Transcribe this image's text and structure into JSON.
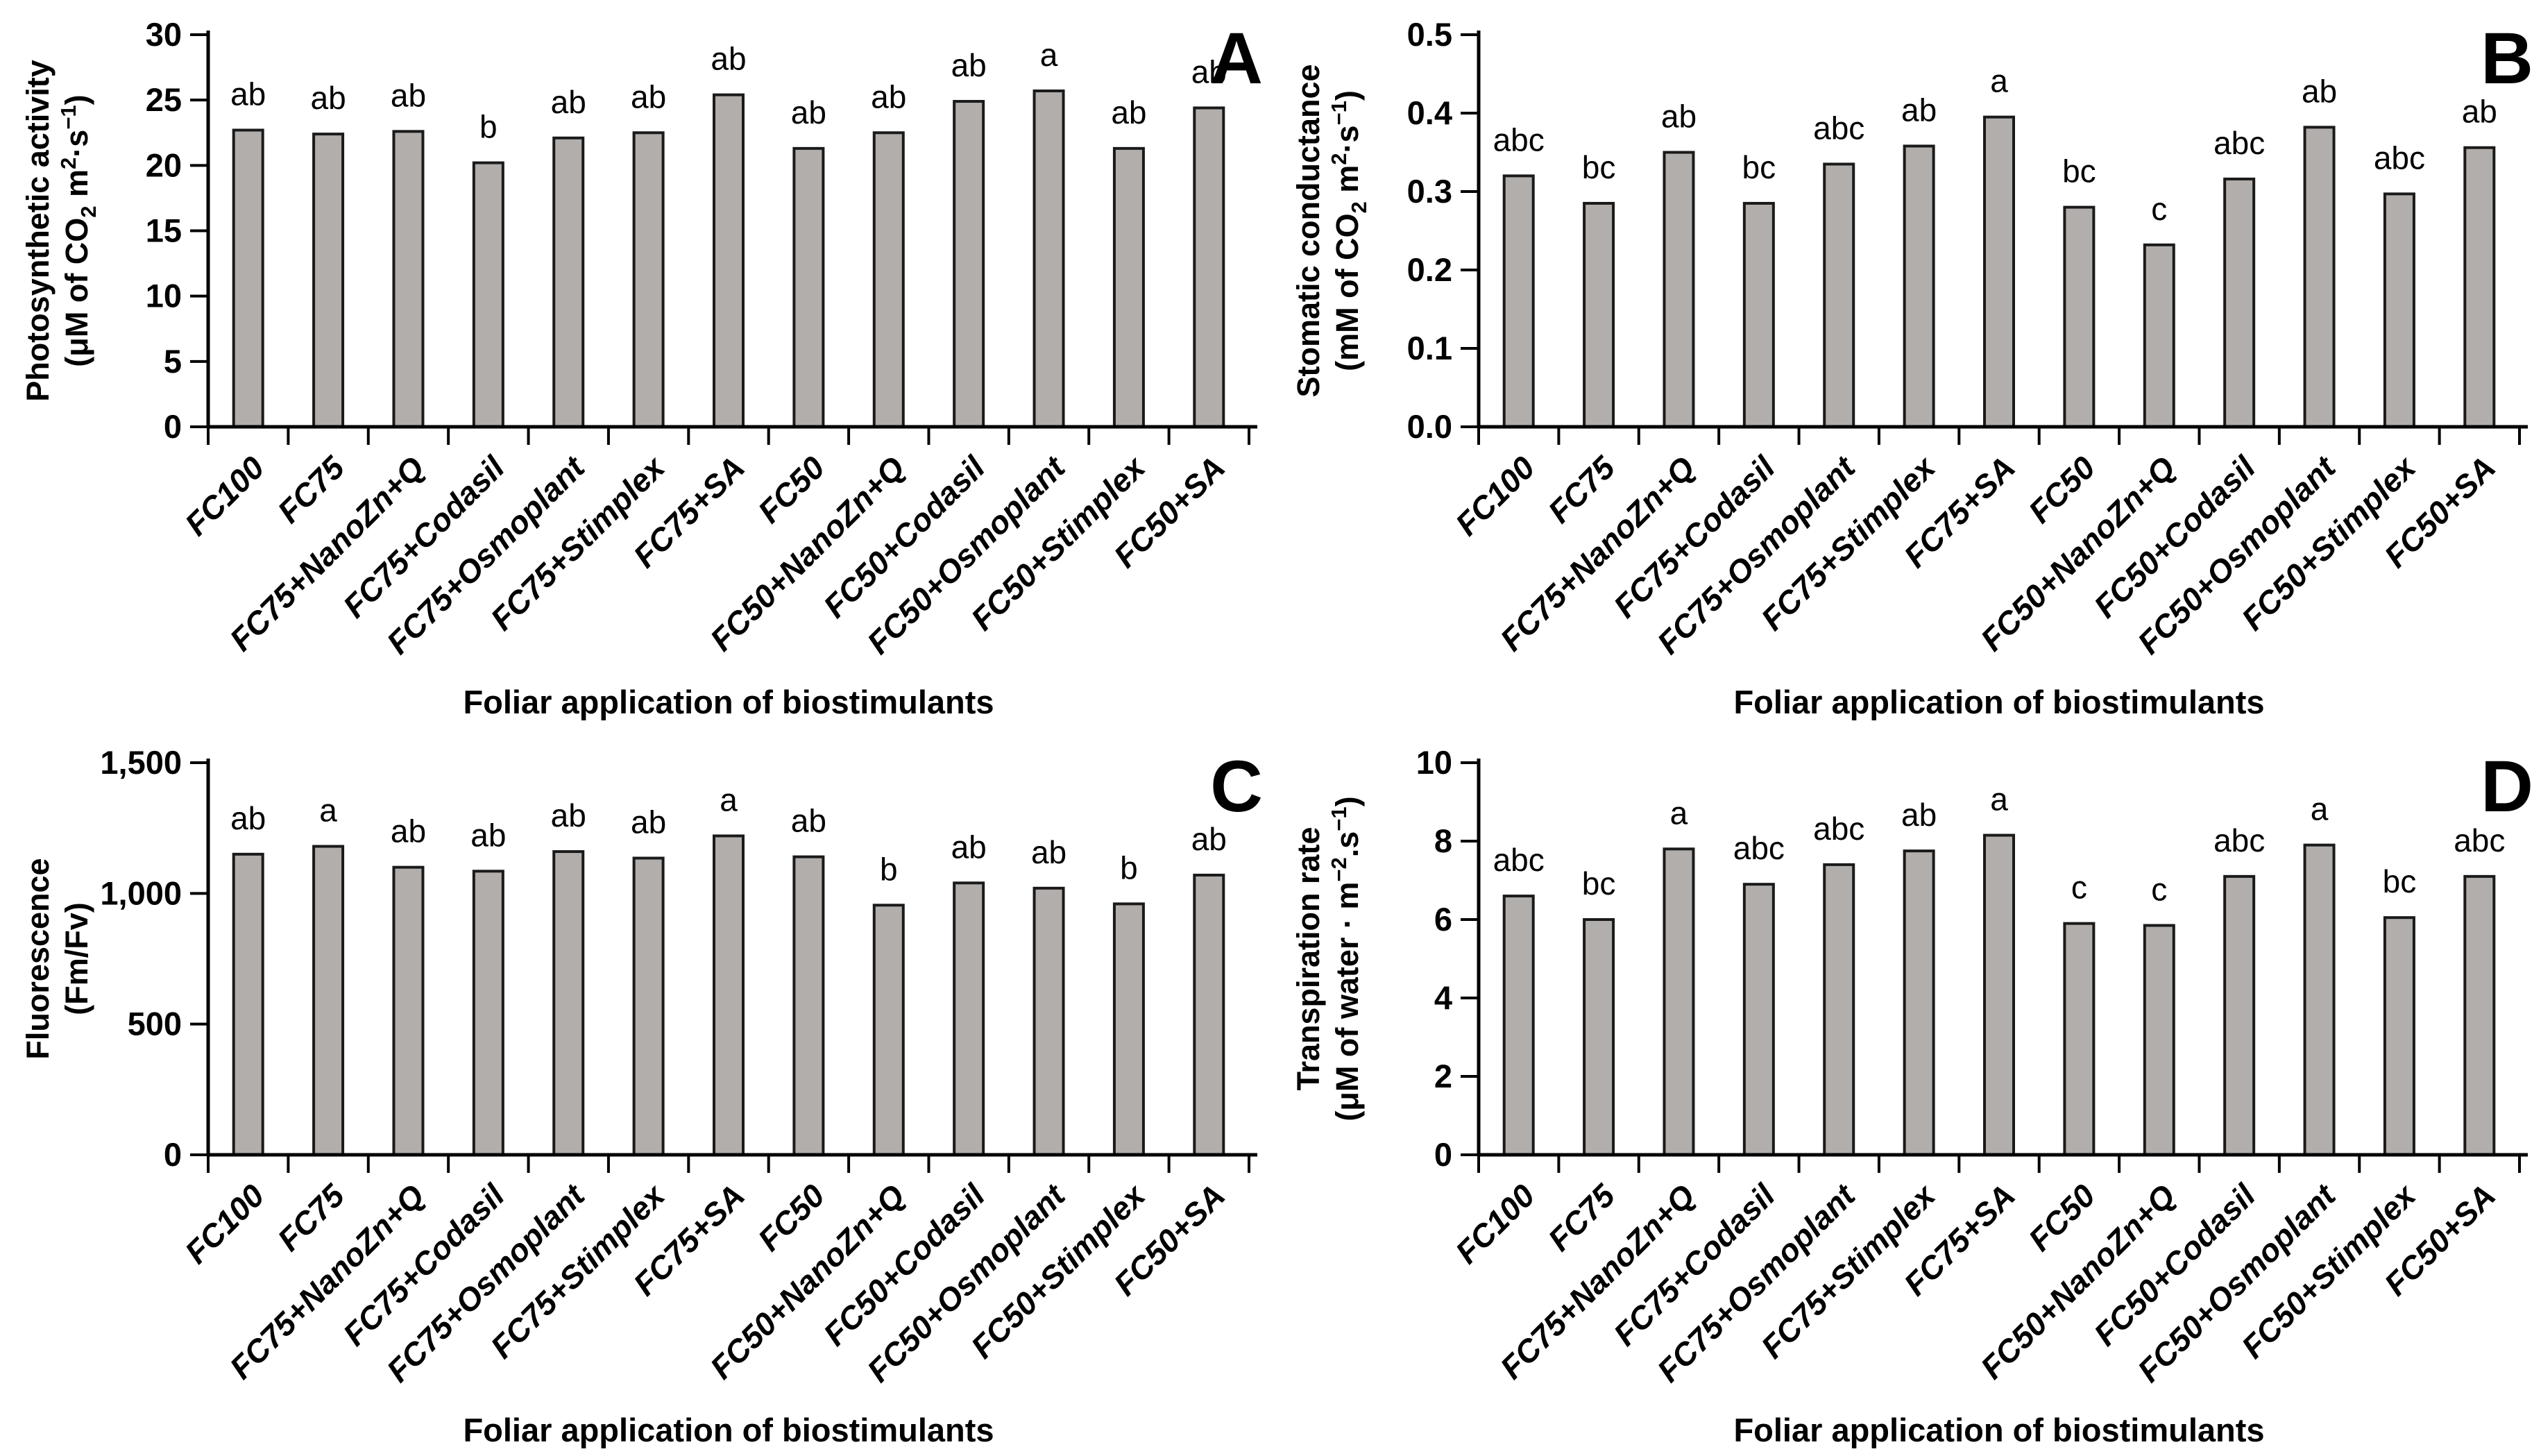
{
  "style": {
    "background": "#ffffff",
    "bar_fill": "#b2aeab",
    "bar_stroke": "#1a1a1a",
    "axis_color": "#000000",
    "text_color": "#000000"
  },
  "xlabel": "Foliar application of biostimulants",
  "categories": [
    "FC100",
    "FC75",
    "FC75+NanoZn+Q",
    "FC75+Codasil",
    "FC75+Osmoplant",
    "FC75+Stimplex",
    "FC75+SA",
    "FC50",
    "FC50+NanoZn+Q",
    "FC50+Codasil",
    "FC50+Osmoplant",
    "FC50+Stimplex",
    "FC50+SA"
  ],
  "chart_data": [
    {
      "panel_label": "A",
      "type": "bar",
      "title": "Photosynthetic activity",
      "ylabel_line1": "Photosynthetic activity",
      "ylabel_unit_tokens": [
        [
          "(μM of CO",
          ""
        ],
        [
          "2",
          "sub"
        ],
        [
          " m",
          ""
        ],
        [
          "2",
          "sup"
        ],
        [
          "·s",
          ""
        ],
        [
          "−1",
          "sup"
        ],
        [
          ")",
          ""
        ]
      ],
      "xlabel": "Foliar application of biostimulants",
      "ylim": [
        0,
        30
      ],
      "yticks": [
        {
          "value": 0,
          "label": "0"
        },
        {
          "value": 5,
          "label": "5"
        },
        {
          "value": 10,
          "label": "10"
        },
        {
          "value": 15,
          "label": "15"
        },
        {
          "value": 20,
          "label": "20"
        },
        {
          "value": 25,
          "label": "25"
        },
        {
          "value": 30,
          "label": "30"
        }
      ],
      "grid": false,
      "legend": "none",
      "categories": [
        "FC100",
        "FC75",
        "FC75+NanoZn+Q",
        "FC75+Codasil",
        "FC75+Osmoplant",
        "FC75+Stimplex",
        "FC75+SA",
        "FC50",
        "FC50+NanoZn+Q",
        "FC50+Codasil",
        "FC50+Osmoplant",
        "FC50+Stimplex",
        "FC50+SA"
      ],
      "values": [
        22.7,
        22.4,
        22.6,
        20.2,
        22.1,
        22.5,
        25.4,
        21.3,
        22.5,
        24.9,
        25.7,
        21.3,
        24.4
      ],
      "sig_letters": [
        "ab",
        "ab",
        "ab",
        "b",
        "ab",
        "ab",
        "ab",
        "ab",
        "ab",
        "ab",
        "a",
        "ab",
        "ab"
      ]
    },
    {
      "panel_label": "B",
      "type": "bar",
      "title": "Stomatic conductance",
      "ylabel_line1": "Stomatic conductance",
      "ylabel_unit_tokens": [
        [
          "(mM of CO",
          ""
        ],
        [
          "2",
          "sub"
        ],
        [
          " m",
          ""
        ],
        [
          "2",
          "sup"
        ],
        [
          "·s",
          ""
        ],
        [
          "−1",
          "sup"
        ],
        [
          ")",
          ""
        ]
      ],
      "xlabel": "Foliar application of biostimulants",
      "ylim": [
        0,
        0.5
      ],
      "yticks": [
        {
          "value": 0,
          "label": "0.0"
        },
        {
          "value": 0.1,
          "label": "0.1"
        },
        {
          "value": 0.2,
          "label": "0.2"
        },
        {
          "value": 0.3,
          "label": "0.3"
        },
        {
          "value": 0.4,
          "label": "0.4"
        },
        {
          "value": 0.5,
          "label": "0.5"
        }
      ],
      "grid": false,
      "legend": "none",
      "categories": [
        "FC100",
        "FC75",
        "FC75+NanoZn+Q",
        "FC75+Codasil",
        "FC75+Osmoplant",
        "FC75+Stimplex",
        "FC75+SA",
        "FC50",
        "FC50+NanoZn+Q",
        "FC50+Codasil",
        "FC50+Osmoplant",
        "FC50+Stimplex",
        "FC50+SA"
      ],
      "values": [
        0.32,
        0.285,
        0.35,
        0.285,
        0.335,
        0.358,
        0.395,
        0.28,
        0.232,
        0.316,
        0.382,
        0.297,
        0.356
      ],
      "sig_letters": [
        "abc",
        "bc",
        "ab",
        "bc",
        "abc",
        "ab",
        "a",
        "bc",
        "c",
        "abc",
        "ab",
        "abc",
        "ab"
      ]
    },
    {
      "panel_label": "C",
      "type": "bar",
      "title": "Fluorescence",
      "ylabel_line1": "Fluorescence",
      "ylabel_unit_tokens": [
        [
          "(Fm/Fv)",
          ""
        ]
      ],
      "xlabel": "Foliar application of biostimulants",
      "ylim": [
        0,
        1500
      ],
      "yticks": [
        {
          "value": 0,
          "label": "0"
        },
        {
          "value": 500,
          "label": "500"
        },
        {
          "value": 1000,
          "label": "1,000"
        },
        {
          "value": 1500,
          "label": "1,500"
        }
      ],
      "grid": false,
      "legend": "none",
      "categories": [
        "FC100",
        "FC75",
        "FC75+NanoZn+Q",
        "FC75+Codasil",
        "FC75+Osmoplant",
        "FC75+Stimplex",
        "FC75+SA",
        "FC50",
        "FC50+NanoZn+Q",
        "FC50+Codasil",
        "FC50+Osmoplant",
        "FC50+Stimplex",
        "FC50+SA"
      ],
      "values": [
        1150,
        1180,
        1100,
        1085,
        1160,
        1135,
        1220,
        1140,
        955,
        1040,
        1020,
        960,
        1070
      ],
      "sig_letters": [
        "ab",
        "a",
        "ab",
        "ab",
        "ab",
        "ab",
        "a",
        "ab",
        "b",
        "ab",
        "ab",
        "b",
        "ab"
      ]
    },
    {
      "panel_label": "D",
      "type": "bar",
      "title": "Transpiration rate",
      "ylabel_line1": "Transpiration rate",
      "ylabel_unit_tokens": [
        [
          "(μM of water · m",
          ""
        ],
        [
          "−2",
          "sup"
        ],
        [
          ".s",
          ""
        ],
        [
          "−1",
          "sup"
        ],
        [
          ")",
          ""
        ]
      ],
      "xlabel": "Foliar application of biostimulants",
      "ylim": [
        0,
        10
      ],
      "yticks": [
        {
          "value": 0,
          "label": "0"
        },
        {
          "value": 2,
          "label": "2"
        },
        {
          "value": 4,
          "label": "4"
        },
        {
          "value": 6,
          "label": "6"
        },
        {
          "value": 8,
          "label": "8"
        },
        {
          "value": 10,
          "label": "10"
        }
      ],
      "grid": false,
      "legend": "none",
      "categories": [
        "FC100",
        "FC75",
        "FC75+NanoZn+Q",
        "FC75+Codasil",
        "FC75+Osmoplant",
        "FC75+Stimplex",
        "FC75+SA",
        "FC50",
        "FC50+NanoZn+Q",
        "FC50+Codasil",
        "FC50+Osmoplant",
        "FC50+Stimplex",
        "FC50+SA"
      ],
      "values": [
        6.6,
        6.0,
        7.8,
        6.9,
        7.4,
        7.75,
        8.15,
        5.9,
        5.85,
        7.1,
        7.9,
        6.05,
        7.1
      ],
      "sig_letters": [
        "abc",
        "bc",
        "a",
        "abc",
        "abc",
        "ab",
        "a",
        "c",
        "c",
        "abc",
        "a",
        "bc",
        "abc"
      ]
    }
  ]
}
